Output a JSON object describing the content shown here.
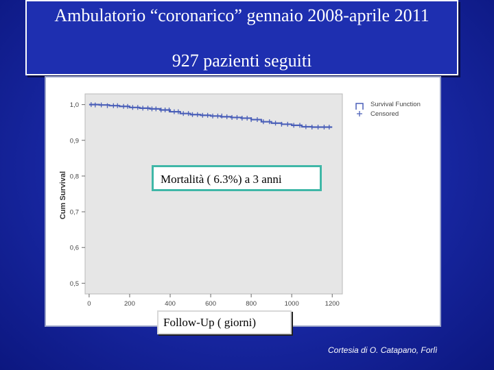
{
  "title": {
    "line1": "Ambulatorio  “coronarico”  gennaio 2008-aprile 2011",
    "line2": "927 pazienti seguiti"
  },
  "annotations": {
    "mortality": "Mortalità   ( 6.3%) a 3 anni",
    "followup": "Follow-Up  ( giorni)"
  },
  "credit": "Cortesia di O. Catapano, Forlì",
  "colors": {
    "background": "#1a2aa8",
    "plot_background": "#e6e6e6",
    "survival_line": "#4a5fb8",
    "mortality_border": "#3fb7a7"
  },
  "chart_data": {
    "type": "line",
    "title": "",
    "xlabel": "",
    "ylabel": "Cum Survival",
    "xlim": [
      -20,
      1250
    ],
    "ylim": [
      0.47,
      1.03
    ],
    "x_ticks": [
      0,
      200,
      400,
      600,
      800,
      1000,
      1200
    ],
    "x_tick_labels": [
      "0",
      "200",
      "400",
      "600",
      "800",
      "1000",
      "1200"
    ],
    "y_ticks": [
      1.0,
      0.9,
      0.8,
      0.7,
      0.6,
      0.5
    ],
    "y_tick_labels": [
      "1,0",
      "0,9",
      "0,8",
      "0,7",
      "0,6",
      "0,5"
    ],
    "grid": false,
    "legend_position": "top-right",
    "legend": [
      "Survival Function",
      "Censored"
    ],
    "series": [
      {
        "name": "Survival Function",
        "style": "step",
        "x": [
          0,
          50,
          100,
          150,
          200,
          250,
          300,
          350,
          400,
          450,
          500,
          550,
          600,
          650,
          700,
          750,
          800,
          850,
          900,
          950,
          1000,
          1050,
          1100,
          1150,
          1200
        ],
        "y": [
          1.0,
          0.999,
          0.997,
          0.995,
          0.992,
          0.99,
          0.988,
          0.985,
          0.98,
          0.975,
          0.972,
          0.97,
          0.968,
          0.966,
          0.964,
          0.962,
          0.958,
          0.952,
          0.948,
          0.945,
          0.942,
          0.938,
          0.937,
          0.937,
          0.937
        ]
      },
      {
        "name": "Censored",
        "style": "marker",
        "x": [
          10,
          30,
          60,
          90,
          120,
          140,
          170,
          190,
          215,
          240,
          265,
          290,
          310,
          330,
          355,
          375,
          395,
          420,
          440,
          465,
          490,
          510,
          535,
          560,
          585,
          610,
          635,
          655,
          680,
          705,
          730,
          755,
          780,
          800,
          830,
          860,
          890,
          920,
          950,
          980,
          1010,
          1040,
          1070,
          1100,
          1130,
          1160,
          1185
        ],
        "y": [
          1.0,
          0.999,
          0.999,
          0.997,
          0.997,
          0.997,
          0.995,
          0.995,
          0.992,
          0.992,
          0.99,
          0.99,
          0.988,
          0.988,
          0.985,
          0.985,
          0.985,
          0.98,
          0.98,
          0.975,
          0.975,
          0.972,
          0.972,
          0.97,
          0.97,
          0.968,
          0.968,
          0.968,
          0.966,
          0.964,
          0.964,
          0.962,
          0.962,
          0.958,
          0.958,
          0.952,
          0.952,
          0.948,
          0.945,
          0.945,
          0.942,
          0.942,
          0.938,
          0.937,
          0.937,
          0.937,
          0.937
        ]
      }
    ]
  }
}
